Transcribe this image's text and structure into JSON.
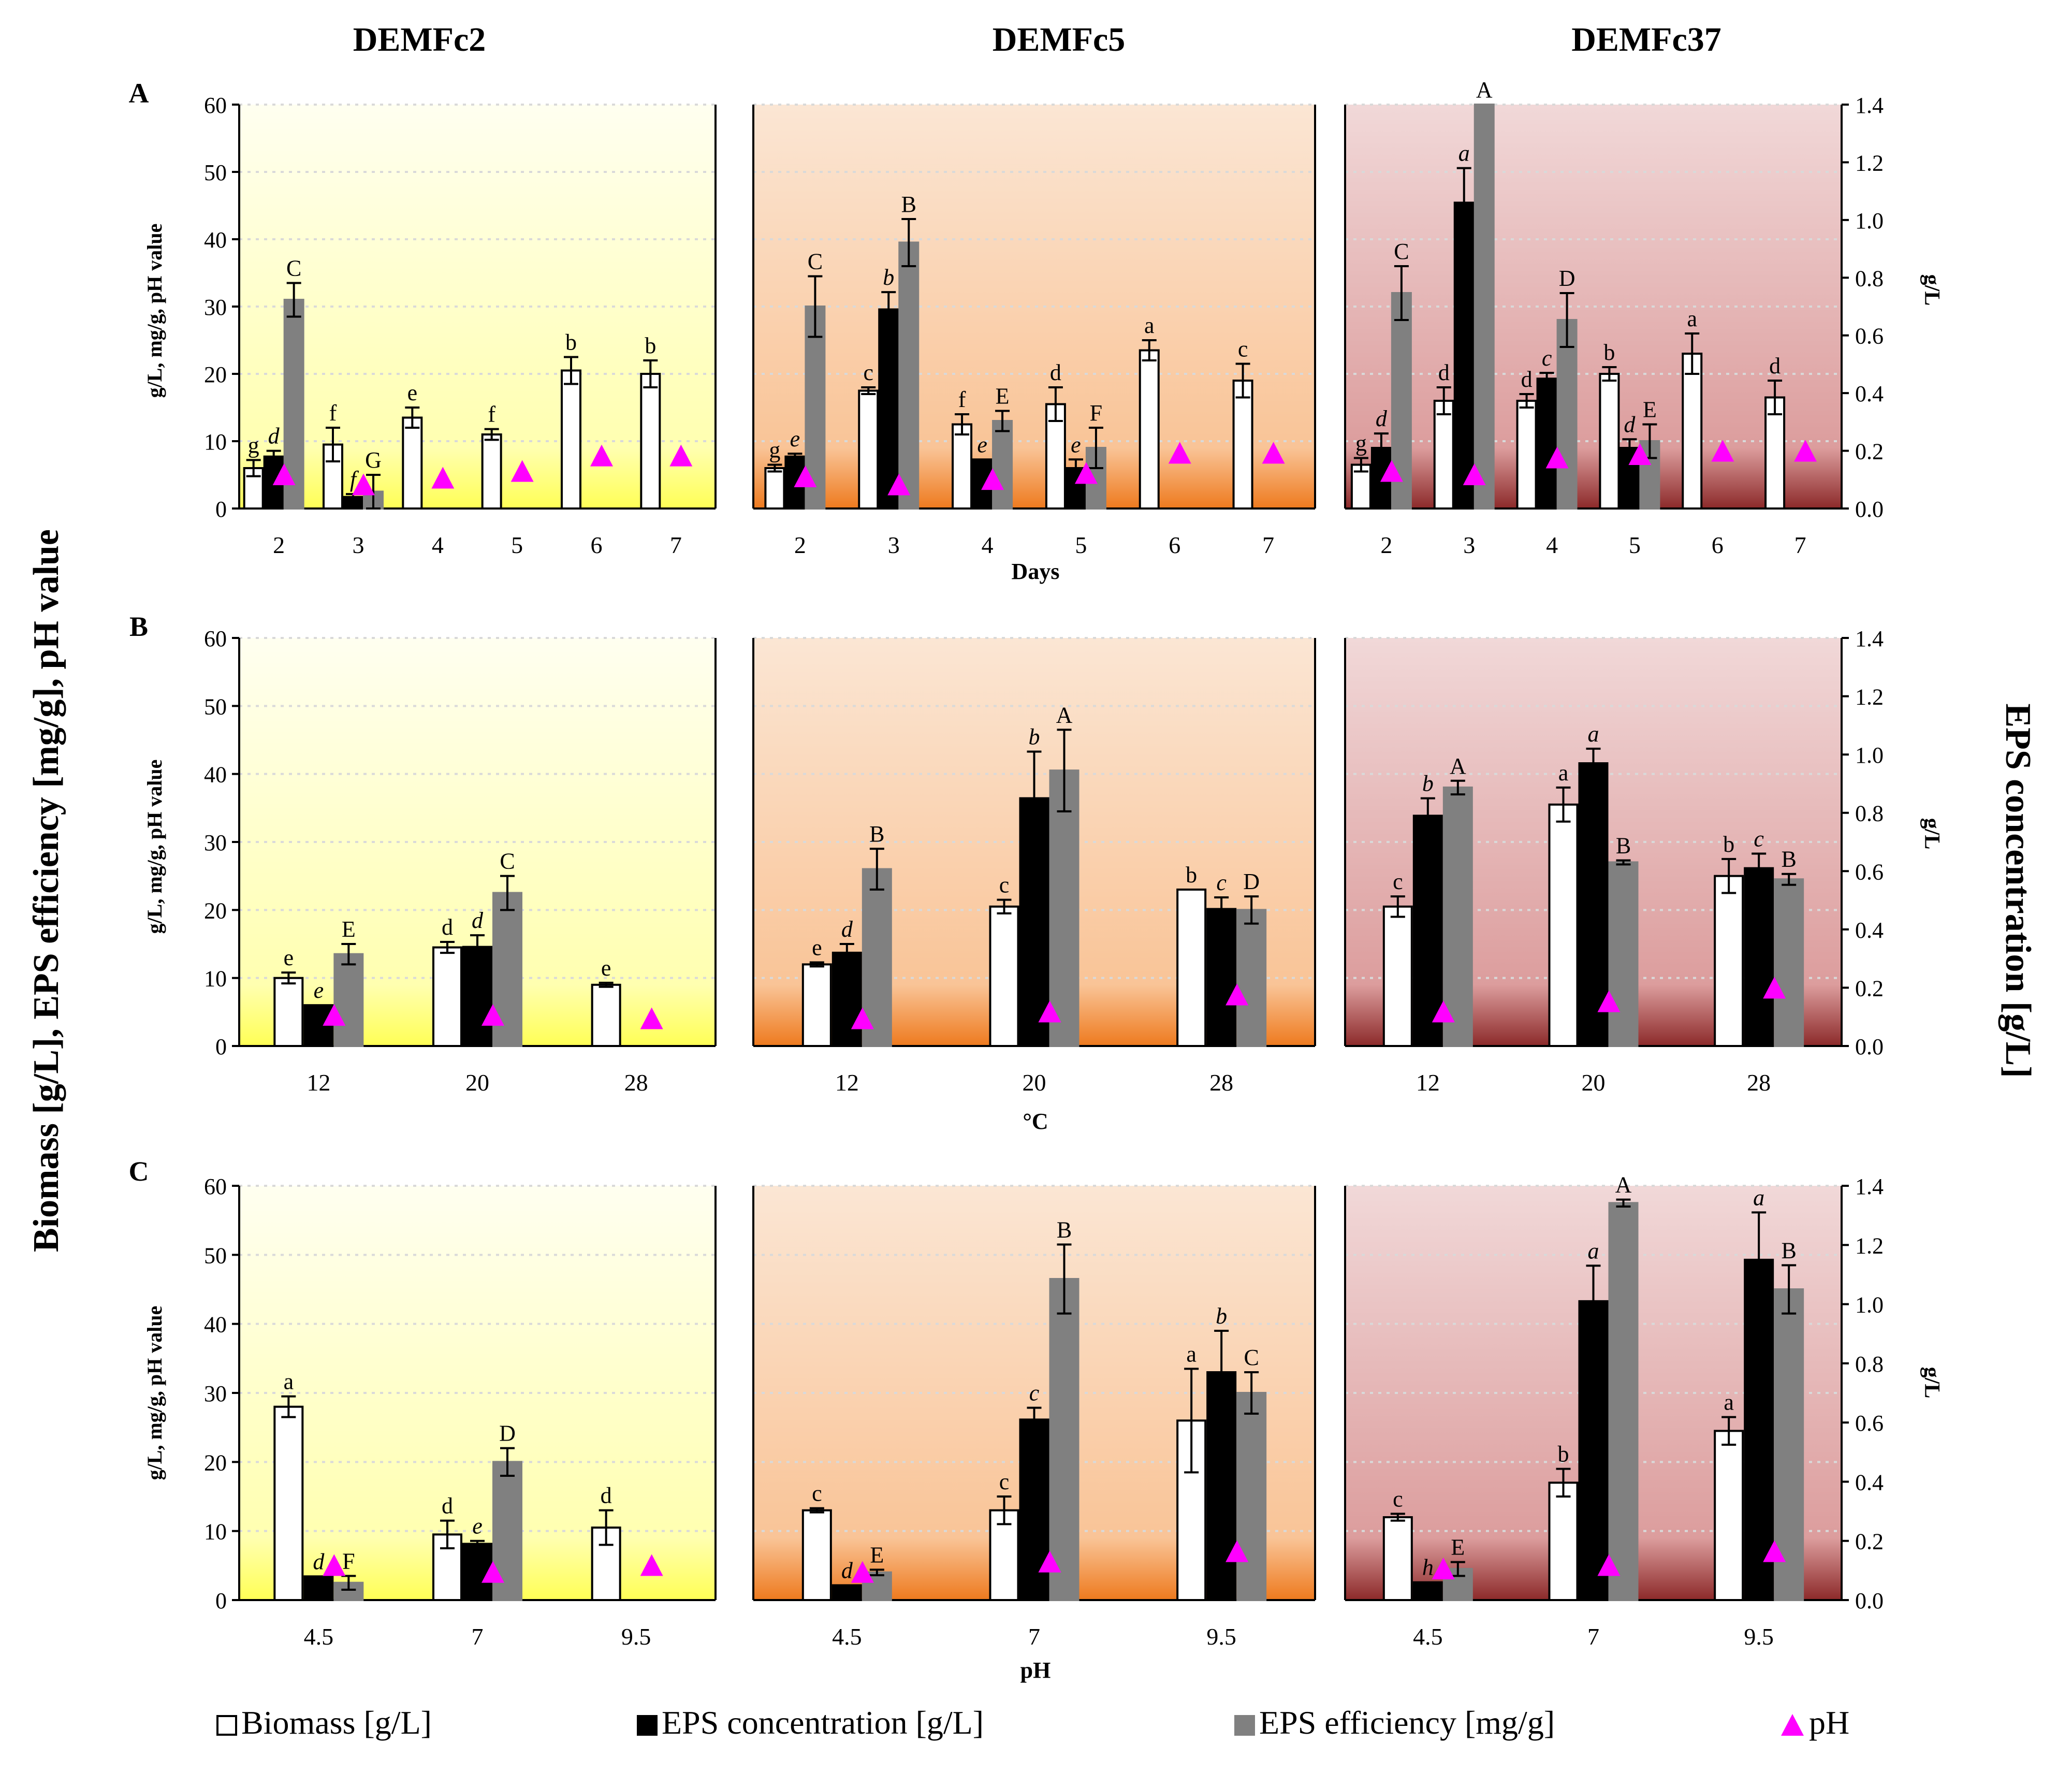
{
  "columns": [
    "DEMFc2",
    "DEMFc5",
    "DEMFc37"
  ],
  "rows": [
    {
      "letter": "A",
      "xlabel": "Days",
      "left_ylabel": "g/L, mg/g, pH value",
      "right_ylabel": "g/L"
    },
    {
      "letter": "B",
      "xlabel": "°C",
      "left_ylabel": "g/L, mg/g, pH value",
      "right_ylabel": "g/L"
    },
    {
      "letter": "C",
      "xlabel": "pH",
      "left_ylabel": "g/L, mg/g, pH value",
      "right_ylabel": "g/L"
    }
  ],
  "outer_left_label": "Biomass [g/L], EPS efficiency [mg/g], pH value",
  "outer_right_label": "EPS concentration [g/L]",
  "legend": [
    "Biomass [g/L]",
    "EPS concentration [g/L]",
    "EPS efficiency [mg/g]",
    "pH"
  ],
  "colors": {
    "biomass": "#ffffff",
    "eps_conc": "#000000",
    "eps_eff": "#808080",
    "ph": "#ff00ff",
    "col_backgrounds": [
      [
        "#ffff55",
        "#ffffb0",
        "#fffff0"
      ],
      [
        "#ee7a1e",
        "#f9c497",
        "#fbe6d4"
      ],
      [
        "#8c2a2a",
        "#dc9d9d",
        "#f1d8d8"
      ]
    ]
  },
  "chart_data": [
    {
      "type": "bar",
      "panel": "A-DEMFc2",
      "categories": [
        "2",
        "3",
        "4",
        "5",
        "6",
        "7"
      ],
      "left_ylim": [
        0,
        60
      ],
      "left_yticks": [
        "0",
        "10",
        "20",
        "30",
        "40",
        "50",
        "60"
      ],
      "right_ylim": [
        0,
        1.4
      ],
      "right_yticks": [],
      "series": [
        {
          "name": "Biomass [g/L]",
          "axis": "left",
          "values": [
            6,
            9.5,
            13.5,
            11,
            20.5,
            20
          ],
          "err": [
            1.2,
            2.5,
            1.5,
            0.8,
            2,
            2
          ],
          "labels": [
            "g",
            "f",
            "e",
            "f",
            "b",
            "b"
          ]
        },
        {
          "name": "EPS concentration [g/L]",
          "axis": "right",
          "values": [
            0.18,
            0.04,
            null,
            null,
            null,
            null
          ],
          "err": [
            0.02,
            0.01,
            null,
            null,
            null,
            null
          ],
          "labels": [
            "d",
            "f",
            "",
            "",
            "",
            ""
          ]
        },
        {
          "name": "EPS efficiency [mg/g]",
          "axis": "left",
          "values": [
            31,
            2.5,
            null,
            null,
            null,
            null
          ],
          "err": [
            2.5,
            2.5,
            null,
            null,
            null,
            null
          ],
          "labels": [
            "C",
            "G",
            "",
            "",
            "",
            ""
          ]
        },
        {
          "name": "pH",
          "axis": "left",
          "values": [
            5,
            3.5,
            4.5,
            5.5,
            7.8,
            7.8
          ]
        }
      ]
    },
    {
      "type": "bar",
      "panel": "A-DEMFc5",
      "categories": [
        "2",
        "3",
        "4",
        "5",
        "6",
        "7"
      ],
      "left_ylim": [
        0,
        60
      ],
      "left_yticks": [],
      "right_ylim": [
        0,
        1.4
      ],
      "right_yticks": [],
      "series": [
        {
          "name": "Biomass [g/L]",
          "axis": "left",
          "values": [
            6,
            17.5,
            12.5,
            15.5,
            23.5,
            19
          ],
          "err": [
            0.5,
            0.5,
            1.5,
            2.5,
            1.5,
            2.5
          ],
          "labels": [
            "g",
            "c",
            "f",
            "d",
            "a",
            "c"
          ]
        },
        {
          "name": "EPS concentration [g/L]",
          "axis": "right",
          "values": [
            0.18,
            0.69,
            0.17,
            0.14,
            null,
            null
          ],
          "err": [
            0.01,
            0.06,
            null,
            0.03,
            null,
            null
          ],
          "labels": [
            "e",
            "b",
            "e",
            "e",
            "",
            ""
          ]
        },
        {
          "name": "EPS efficiency [mg/g]",
          "axis": "left",
          "values": [
            30,
            39.5,
            13,
            9,
            null,
            null
          ],
          "err": [
            4.5,
            3.5,
            1.5,
            3,
            null,
            null
          ],
          "labels": [
            "C",
            "B",
            "E",
            "F",
            "",
            ""
          ]
        },
        {
          "name": "pH",
          "axis": "left",
          "values": [
            4.7,
            3.5,
            4.3,
            5.2,
            8.2,
            8.2
          ]
        }
      ]
    },
    {
      "type": "bar",
      "panel": "A-DEMFc37",
      "categories": [
        "2",
        "3",
        "4",
        "5",
        "6",
        "7"
      ],
      "left_ylim": [
        0,
        60
      ],
      "left_yticks": [],
      "right_ylim": [
        0,
        1.4
      ],
      "right_yticks": [
        "0.0",
        "0.2",
        "0.4",
        "0.6",
        "0.8",
        "1.0",
        "1.2",
        "1.4"
      ],
      "series": [
        {
          "name": "Biomass [g/L]",
          "axis": "left",
          "values": [
            6.5,
            16,
            16,
            20,
            23,
            16.5
          ],
          "err": [
            1,
            2,
            1,
            1,
            3,
            2.5
          ],
          "labels": [
            "g",
            "d",
            "d",
            "b",
            "a",
            "d"
          ]
        },
        {
          "name": "EPS concentration [g/L]",
          "axis": "right",
          "values": [
            0.21,
            1.06,
            0.45,
            0.21,
            null,
            null
          ],
          "err": [
            0.05,
            0.12,
            0.02,
            0.03,
            null,
            null
          ],
          "labels": [
            "d",
            "a",
            "c",
            "d",
            "",
            ""
          ]
        },
        {
          "name": "EPS efficiency [mg/g]",
          "axis": "left",
          "values": [
            32,
            60,
            28,
            10,
            null,
            null
          ],
          "err": [
            4,
            null,
            4,
            2.5,
            null,
            null
          ],
          "labels": [
            "C",
            "A",
            "D",
            "E",
            "",
            ""
          ]
        },
        {
          "name": "pH",
          "axis": "left",
          "values": [
            5.5,
            5,
            7.5,
            8,
            8.5,
            8.5
          ]
        }
      ]
    },
    {
      "type": "bar",
      "panel": "B-DEMFc2",
      "categories": [
        "12",
        "20",
        "28"
      ],
      "left_ylim": [
        0,
        60
      ],
      "left_yticks": [
        "0",
        "10",
        "20",
        "30",
        "40",
        "50",
        "60"
      ],
      "right_ylim": [
        0,
        1.4
      ],
      "right_yticks": [],
      "series": [
        {
          "name": "Biomass [g/L]",
          "axis": "left",
          "values": [
            10,
            14.5,
            9
          ],
          "err": [
            0.8,
            0.8,
            0.3
          ],
          "labels": [
            "e",
            "d",
            "e"
          ]
        },
        {
          "name": "EPS concentration [g/L]",
          "axis": "right",
          "values": [
            0.14,
            0.34,
            null
          ],
          "err": [
            null,
            0.04,
            null
          ],
          "labels": [
            "e",
            "d",
            ""
          ]
        },
        {
          "name": "EPS efficiency [mg/g]",
          "axis": "left",
          "values": [
            13.5,
            22.5,
            null
          ],
          "err": [
            1.5,
            2.5,
            null
          ],
          "labels": [
            "E",
            "C",
            ""
          ]
        },
        {
          "name": "pH",
          "axis": "left",
          "values": [
            4.5,
            4.5,
            4
          ]
        }
      ]
    },
    {
      "type": "bar",
      "panel": "B-DEMFc5",
      "categories": [
        "12",
        "20",
        "28"
      ],
      "left_ylim": [
        0,
        60
      ],
      "left_yticks": [],
      "right_ylim": [
        0,
        1.4
      ],
      "right_yticks": [],
      "series": [
        {
          "name": "Biomass [g/L]",
          "axis": "left",
          "values": [
            12,
            20.5,
            23
          ],
          "err": [
            0.3,
            1,
            null
          ],
          "labels": [
            "e",
            "c",
            "b"
          ]
        },
        {
          "name": "EPS concentration [g/L]",
          "axis": "right",
          "values": [
            0.32,
            0.85,
            0.47
          ],
          "err": [
            0.03,
            0.16,
            0.04
          ],
          "labels": [
            "d",
            "b",
            "c"
          ]
        },
        {
          "name": "EPS efficiency [mg/g]",
          "axis": "left",
          "values": [
            26,
            40.5,
            20
          ],
          "err": [
            3,
            6,
            2
          ],
          "labels": [
            "B",
            "A",
            "D"
          ]
        },
        {
          "name": "pH",
          "axis": "left",
          "values": [
            4,
            5,
            7.5
          ]
        }
      ]
    },
    {
      "type": "bar",
      "panel": "B-DEMFc37",
      "categories": [
        "12",
        "20",
        "28"
      ],
      "left_ylim": [
        0,
        60
      ],
      "left_yticks": [],
      "right_ylim": [
        0,
        1.4
      ],
      "right_yticks": [
        "0.0",
        "0.2",
        "0.4",
        "0.6",
        "0.8",
        "1.0",
        "1.2",
        "1.4"
      ],
      "series": [
        {
          "name": "Biomass [g/L]",
          "axis": "left",
          "values": [
            20.5,
            35.5,
            25
          ],
          "err": [
            1.5,
            2.5,
            2.5
          ],
          "labels": [
            "c",
            "a",
            "b"
          ]
        },
        {
          "name": "EPS concentration [g/L]",
          "axis": "right",
          "values": [
            0.79,
            0.97,
            0.61
          ],
          "err": [
            0.06,
            0.05,
            0.05
          ],
          "labels": [
            "b",
            "a",
            "c"
          ]
        },
        {
          "name": "EPS efficiency [mg/g]",
          "axis": "left",
          "values": [
            38,
            27,
            24.5
          ],
          "err": [
            1,
            0.3,
            0.8
          ],
          "labels": [
            "A",
            "B",
            "B"
          ]
        },
        {
          "name": "pH",
          "axis": "left",
          "values": [
            5,
            6.5,
            8.5
          ]
        }
      ]
    },
    {
      "type": "bar",
      "panel": "C-DEMFc2",
      "categories": [
        "4.5",
        "7",
        "9.5"
      ],
      "left_ylim": [
        0,
        60
      ],
      "left_yticks": [
        "0",
        "10",
        "20",
        "30",
        "40",
        "50",
        "60"
      ],
      "right_ylim": [
        0,
        1.4
      ],
      "right_yticks": [],
      "series": [
        {
          "name": "Biomass [g/L]",
          "axis": "left",
          "values": [
            28,
            9.5,
            10.5
          ],
          "err": [
            1.5,
            2,
            2.5
          ],
          "labels": [
            "a",
            "d",
            "d"
          ]
        },
        {
          "name": "EPS concentration [g/L]",
          "axis": "right",
          "values": [
            0.08,
            0.19,
            null
          ],
          "err": [
            null,
            0.01,
            null
          ],
          "labels": [
            "d",
            "e",
            ""
          ]
        },
        {
          "name": "EPS efficiency [mg/g]",
          "axis": "left",
          "values": [
            2.5,
            20,
            null
          ],
          "err": [
            1,
            2,
            null
          ],
          "labels": [
            "F",
            "D",
            ""
          ]
        },
        {
          "name": "pH",
          "axis": "left",
          "values": [
            5,
            4,
            5
          ]
        }
      ]
    },
    {
      "type": "bar",
      "panel": "C-DEMFc5",
      "categories": [
        "4.5",
        "7",
        "9.5"
      ],
      "left_ylim": [
        0,
        60
      ],
      "left_yticks": [],
      "right_ylim": [
        0,
        1.4
      ],
      "right_yticks": [],
      "series": [
        {
          "name": "Biomass [g/L]",
          "axis": "left",
          "values": [
            13,
            13,
            26
          ],
          "err": [
            0.3,
            2,
            7.5
          ],
          "labels": [
            "c",
            "c",
            "a"
          ]
        },
        {
          "name": "EPS concentration [g/L]",
          "axis": "right",
          "values": [
            0.05,
            0.61,
            0.77
          ],
          "err": [
            null,
            0.04,
            0.14
          ],
          "labels": [
            "d",
            "c",
            "b"
          ]
        },
        {
          "name": "EPS efficiency [mg/g]",
          "axis": "left",
          "values": [
            4,
            46.5,
            30
          ],
          "err": [
            0.4,
            5,
            3
          ],
          "labels": [
            "E",
            "B",
            "C"
          ]
        },
        {
          "name": "pH",
          "axis": "left",
          "values": [
            4,
            5.5,
            7
          ]
        }
      ]
    },
    {
      "type": "bar",
      "panel": "C-DEMFc37",
      "categories": [
        "4.5",
        "7",
        "9.5"
      ],
      "left_ylim": [
        0,
        60
      ],
      "left_yticks": [],
      "right_ylim": [
        0,
        1.4
      ],
      "right_yticks": [
        "0.0",
        "0.2",
        "0.4",
        "0.6",
        "0.8",
        "1.0",
        "1.2",
        "1.4"
      ],
      "series": [
        {
          "name": "Biomass [g/L]",
          "axis": "left",
          "values": [
            12,
            17,
            24.5
          ],
          "err": [
            0.5,
            2,
            2
          ],
          "labels": [
            "c",
            "b",
            "a"
          ]
        },
        {
          "name": "EPS concentration [g/L]",
          "axis": "right",
          "values": [
            0.06,
            1.01,
            1.15
          ],
          "err": [
            null,
            0.12,
            0.16
          ],
          "labels": [
            "h",
            "a",
            "a"
          ]
        },
        {
          "name": "EPS efficiency [mg/g]",
          "axis": "left",
          "values": [
            4.5,
            57.5,
            45
          ],
          "err": [
            1,
            0.5,
            3.5
          ],
          "labels": [
            "E",
            "A",
            "B"
          ]
        },
        {
          "name": "pH",
          "axis": "left",
          "values": [
            4.5,
            5,
            7
          ]
        }
      ]
    }
  ]
}
